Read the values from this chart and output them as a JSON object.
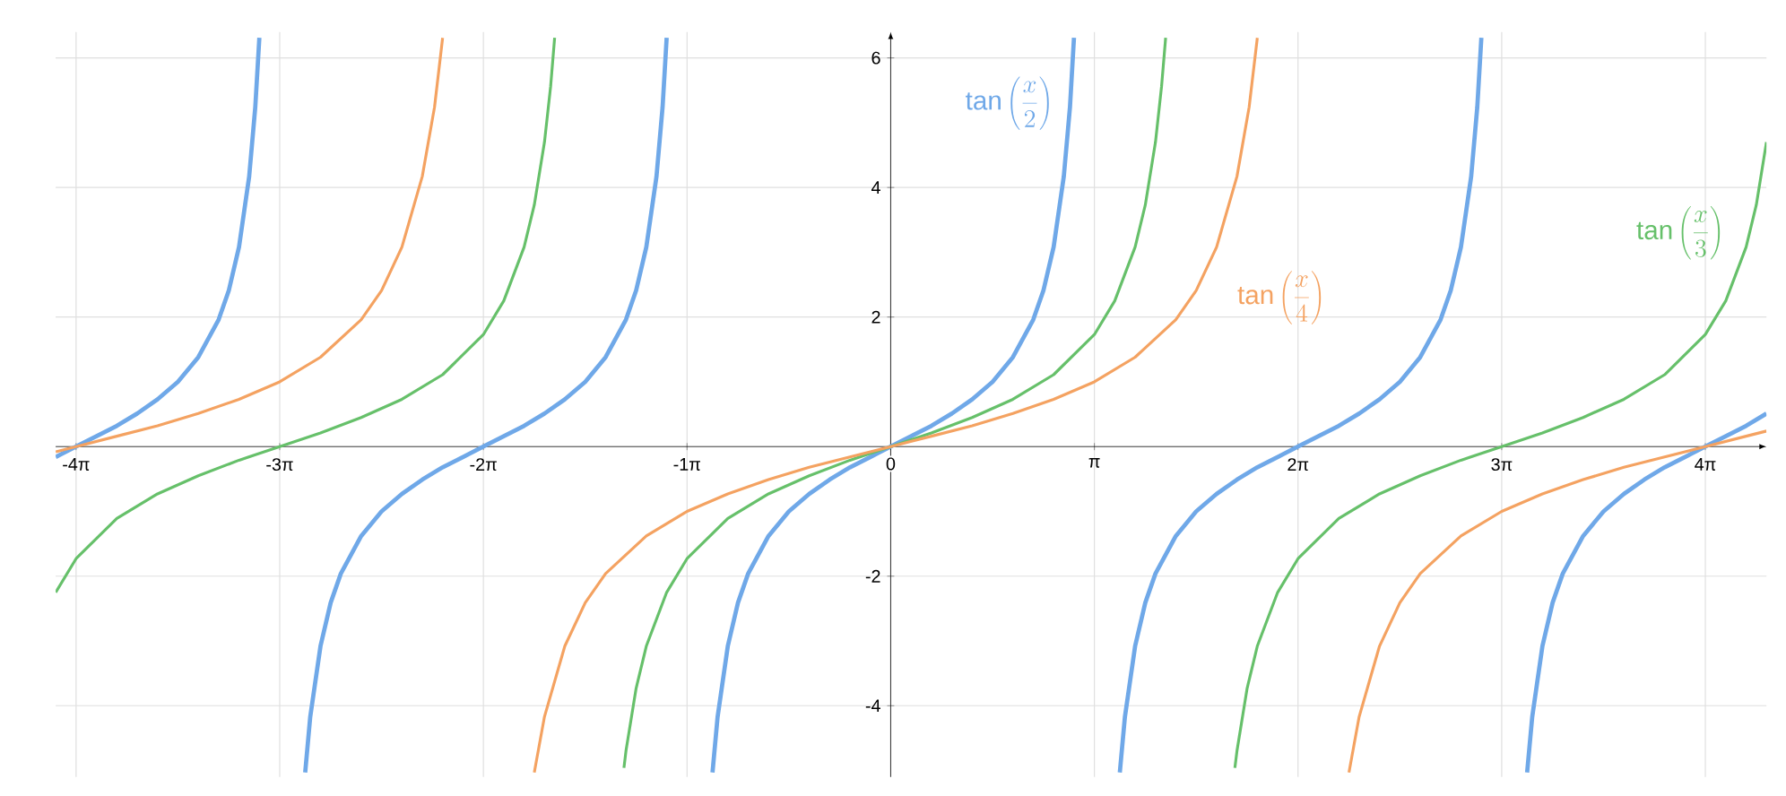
{
  "chart_data": {
    "type": "line",
    "xlim": [
      -12.881,
      13.509
    ],
    "ylim": [
      -5.1,
      6.4
    ],
    "xticks": [
      {
        "value": -12.566,
        "label": "-4π"
      },
      {
        "value": -9.425,
        "label": "-3π"
      },
      {
        "value": -6.283,
        "label": "-2π"
      },
      {
        "value": -3.142,
        "label": "-1π"
      },
      {
        "value": 0,
        "label": "0"
      },
      {
        "value": 3.142,
        "label": "π"
      },
      {
        "value": 6.283,
        "label": "2π"
      },
      {
        "value": 9.425,
        "label": "3π"
      },
      {
        "value": 12.566,
        "label": "4π"
      }
    ],
    "yticks": [
      -4,
      -2,
      2,
      4,
      6
    ],
    "grid": true,
    "series": [
      {
        "name": "\\tan\\left(\\frac{x}{2}\\right)",
        "color": "#6fa8e8",
        "x": [
          -12.881,
          -12.566,
          -12.252,
          -11.938,
          -11.624,
          -11.31,
          -10.996,
          -10.681,
          -10.367,
          -10.21,
          -10.053,
          -9.896,
          -9.802,
          -9.739,
          -9.425,
          -9.032,
          -8.954,
          -8.796,
          -8.639,
          -8.482,
          -8.168,
          -7.854,
          -7.54,
          -7.226,
          -6.912,
          -6.597,
          -6.283,
          -5.969,
          -5.655,
          -5.341,
          -5.027,
          -4.712,
          -4.398,
          -4.084,
          -3.927,
          -3.77,
          -3.613,
          -3.519,
          -3.456,
          -3.142,
          -2.749,
          -2.67,
          -2.513,
          -2.356,
          -2.199,
          -1.885,
          -1.571,
          -1.257,
          -0.942,
          -0.628,
          -0.314,
          0,
          0.314,
          0.628,
          0.942,
          1.257,
          1.571,
          1.885,
          2.199,
          2.356,
          2.513,
          2.67,
          2.765,
          2.827,
          3.142,
          3.534,
          3.613,
          3.77,
          3.927,
          4.084,
          4.398,
          4.712,
          5.027,
          5.341,
          5.655,
          5.969,
          6.283,
          6.597,
          6.912,
          7.226,
          7.54,
          7.854,
          8.168,
          8.482,
          8.639,
          8.796,
          8.954,
          9.048,
          9.111,
          9.425,
          9.817,
          9.896,
          10.053,
          10.21,
          10.367,
          10.681,
          10.996,
          11.31,
          11.624,
          11.938,
          12.252,
          12.566,
          12.881,
          13.195,
          13.509
        ],
        "values": [
          -0.16,
          0,
          0.16,
          0.32,
          0.51,
          0.73,
          1,
          1.38,
          1.96,
          2.41,
          3.08,
          4.17,
          5.24,
          6.31,
          null,
          -5.03,
          -4.17,
          -3.08,
          -2.41,
          -1.96,
          -1.38,
          -1,
          -0.73,
          -0.51,
          -0.32,
          -0.16,
          0,
          0.16,
          0.32,
          0.51,
          0.73,
          1,
          1.38,
          1.96,
          2.41,
          3.08,
          4.17,
          5.24,
          6.31,
          null,
          -5.03,
          -4.17,
          -3.08,
          -2.41,
          -1.96,
          -1.38,
          -1,
          -0.73,
          -0.51,
          -0.32,
          -0.16,
          0,
          0.16,
          0.32,
          0.51,
          0.73,
          1,
          1.38,
          1.96,
          2.41,
          3.08,
          4.17,
          5.24,
          6.31,
          null,
          -5.03,
          -4.17,
          -3.08,
          -2.41,
          -1.96,
          -1.38,
          -1,
          -0.73,
          -0.51,
          -0.32,
          -0.16,
          0,
          0.16,
          0.32,
          0.51,
          0.73,
          1,
          1.38,
          1.96,
          2.41,
          3.08,
          4.17,
          5.24,
          6.31,
          null,
          -5.03,
          -4.17,
          -3.08,
          -2.41,
          -1.96,
          -1.38,
          -1,
          -0.73,
          -0.51,
          -0.32,
          -0.16,
          0,
          0.16,
          0.32,
          0.51
        ]
      },
      {
        "name": "\\tan\\left(\\frac{x}{3}\\right)",
        "color": "#66c06a",
        "x": [
          -12.881,
          -12.566,
          -11.938,
          -11.31,
          -10.681,
          -10.053,
          -9.425,
          -8.796,
          -8.168,
          -7.54,
          -6.912,
          -6.283,
          -5.969,
          -5.655,
          -5.498,
          -5.341,
          -5.246,
          -5.184,
          -4.712,
          -4.115,
          -4.084,
          -3.927,
          -3.77,
          -3.456,
          -3.142,
          -2.513,
          -1.885,
          -1.257,
          -0.628,
          0,
          0.628,
          1.257,
          1.885,
          2.513,
          3.142,
          3.456,
          3.77,
          3.927,
          4.084,
          4.178,
          4.241,
          4.712,
          5.309,
          5.341,
          5.498,
          5.655,
          5.969,
          6.283,
          6.912,
          7.54,
          8.168,
          8.796,
          9.425,
          10.053,
          10.681,
          11.31,
          11.938,
          12.566,
          12.881,
          13.195,
          13.352,
          13.509
        ],
        "values": [
          -2.25,
          -1.73,
          -1.11,
          -0.73,
          -0.45,
          -0.21,
          0,
          0.21,
          0.45,
          0.73,
          1.11,
          1.73,
          2.25,
          3.08,
          3.73,
          4.7,
          5.56,
          6.31,
          null,
          -4.96,
          -4.7,
          -3.73,
          -3.08,
          -2.25,
          -1.73,
          -1.11,
          -0.73,
          -0.45,
          -0.21,
          0,
          0.21,
          0.45,
          0.73,
          1.11,
          1.73,
          2.25,
          3.08,
          3.73,
          4.7,
          5.56,
          6.31,
          null,
          -4.96,
          -4.7,
          -3.73,
          -3.08,
          -2.25,
          -1.73,
          -1.11,
          -0.73,
          -0.45,
          -0.21,
          0,
          0.21,
          0.45,
          0.73,
          1.11,
          1.73,
          2.25,
          3.08,
          3.73,
          4.7
        ]
      },
      {
        "name": "\\tan\\left(\\frac{x}{4}\\right)",
        "color": "#f4a261",
        "x": [
          -12.881,
          -12.566,
          -11.938,
          -11.31,
          -10.681,
          -10.053,
          -9.425,
          -8.796,
          -8.168,
          -7.854,
          -7.54,
          -7.226,
          -7.037,
          -6.912,
          -6.283,
          -5.498,
          -5.341,
          -5.027,
          -4.712,
          -4.398,
          -3.77,
          -3.142,
          -2.513,
          -1.885,
          -1.257,
          -0.628,
          0,
          0.628,
          1.257,
          1.885,
          2.513,
          3.142,
          3.77,
          4.398,
          4.712,
          5.027,
          5.341,
          5.529,
          5.655,
          6.283,
          7.069,
          7.226,
          7.54,
          7.854,
          8.168,
          8.796,
          9.425,
          10.053,
          10.681,
          11.31,
          11.938,
          12.566,
          13.195,
          13.509
        ],
        "values": [
          -0.08,
          0,
          0.16,
          0.32,
          0.51,
          0.73,
          1,
          1.38,
          1.96,
          2.41,
          3.08,
          4.17,
          5.24,
          6.31,
          null,
          -5.03,
          -4.17,
          -3.08,
          -2.41,
          -1.96,
          -1.38,
          -1,
          -0.73,
          -0.51,
          -0.32,
          -0.16,
          0,
          0.16,
          0.32,
          0.51,
          0.73,
          1,
          1.38,
          1.96,
          2.41,
          3.08,
          4.17,
          5.24,
          6.31,
          null,
          -5.03,
          -4.17,
          -3.08,
          -2.41,
          -1.96,
          -1.38,
          -1,
          -0.73,
          -0.51,
          -0.32,
          -0.16,
          0,
          0.16,
          0.24
        ]
      }
    ]
  }
}
